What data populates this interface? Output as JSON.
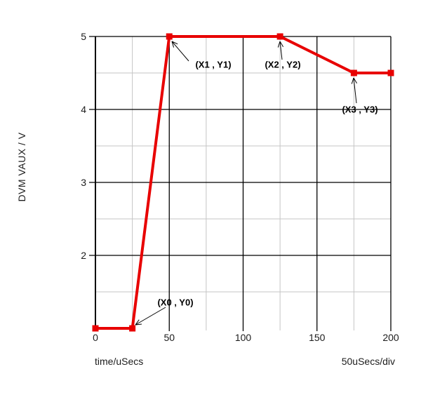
{
  "chart_data": {
    "type": "line",
    "title": "",
    "ylabel": "DVM VAUX / V",
    "xlabel": "time/uSecs",
    "x_scale_label": "50uSecs/div",
    "x_range": [
      0,
      200
    ],
    "y_range": [
      1,
      5
    ],
    "x_major_ticks": [
      0,
      50,
      100,
      150,
      200
    ],
    "x_minor_gridlines": [
      25,
      75,
      125,
      175
    ],
    "y_major_ticks": [
      5,
      4,
      3,
      2
    ],
    "y_minor_gridlines": [
      4.5,
      3.5,
      2.5,
      1.5
    ],
    "grid": "major black lines, minor light-gray lines",
    "legend": "none",
    "series": [
      {
        "name": "DVM VAUX",
        "color": "#e80000",
        "marker": "filled-square",
        "points": [
          [
            0,
            1
          ],
          [
            25,
            1
          ],
          [
            50,
            5
          ],
          [
            125,
            5
          ],
          [
            175,
            4.5
          ],
          [
            200,
            4.5
          ]
        ]
      }
    ],
    "annotations": [
      {
        "label": "(X0 , Y0)",
        "point_x": 25,
        "point_y": 1
      },
      {
        "label": "(X1 , Y1)",
        "point_x": 50,
        "point_y": 5
      },
      {
        "label": "(X2 , Y2)",
        "point_x": 125,
        "point_y": 5
      },
      {
        "label": "(X3 , Y3)",
        "point_x": 175,
        "point_y": 4.5
      }
    ],
    "colors": {
      "trace": "#e80000",
      "major_grid": "#000000",
      "minor_grid": "#c5c5c5",
      "text": "#1c1c1c",
      "background": "#ffffff"
    }
  }
}
